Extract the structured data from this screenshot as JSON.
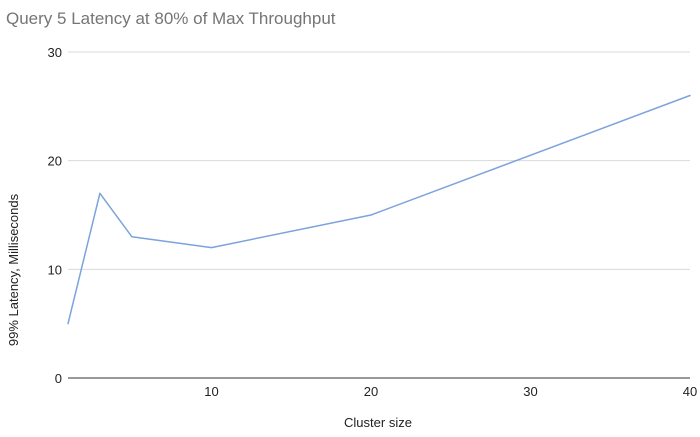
{
  "chart_data": {
    "type": "line",
    "title": "Query 5 Latency at 80% of Max Throughput",
    "xlabel": "Cluster size",
    "ylabel": "99% Latency, Milliseconds",
    "xlim": [
      1,
      40
    ],
    "ylim": [
      0,
      30
    ],
    "x_ticks": [
      10,
      20,
      30,
      40
    ],
    "y_ticks": [
      0,
      10,
      20,
      30
    ],
    "grid": true,
    "legend": "none",
    "series": [
      {
        "color": "#7ba3dc",
        "points": [
          {
            "x": 1,
            "y": 5
          },
          {
            "x": 3,
            "y": 17
          },
          {
            "x": 5,
            "y": 13
          },
          {
            "x": 10,
            "y": 12
          },
          {
            "x": 20,
            "y": 15
          },
          {
            "x": 40,
            "y": 26
          }
        ]
      }
    ]
  }
}
